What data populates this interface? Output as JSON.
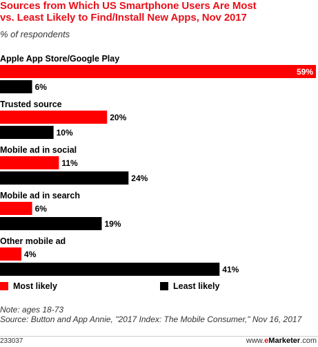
{
  "chart_data": {
    "type": "bar",
    "orientation": "horizontal",
    "title": "Sources from Which US Smartphone Users Are Most\nvs. Least Likely to Find/Install New Apps, Nov 2017",
    "subtitle": "% of respondents",
    "categories": [
      "Apple App Store/Google Play",
      "Trusted source",
      "Mobile ad in social",
      "Mobile ad in search",
      "Other mobile ad"
    ],
    "series": [
      {
        "name": "Most likely",
        "color": "#ff0000",
        "values": [
          59,
          20,
          11,
          6,
          4
        ]
      },
      {
        "name": "Least likely",
        "color": "#000000",
        "values": [
          6,
          10,
          24,
          19,
          41
        ]
      }
    ],
    "value_suffix": "%",
    "xlim": [
      0,
      59
    ],
    "grid": false,
    "legend_position": "bottom"
  },
  "footer": {
    "note": "Note: ages 18-73",
    "source": "Source: Button and App Annie, \"2017 Index: The Mobile Consumer,\" Nov 16, 2017",
    "chart_id": "233037",
    "brand_prefix": "www.",
    "brand_e": "e",
    "brand_name": "Marketer",
    "brand_suffix": ".com"
  }
}
